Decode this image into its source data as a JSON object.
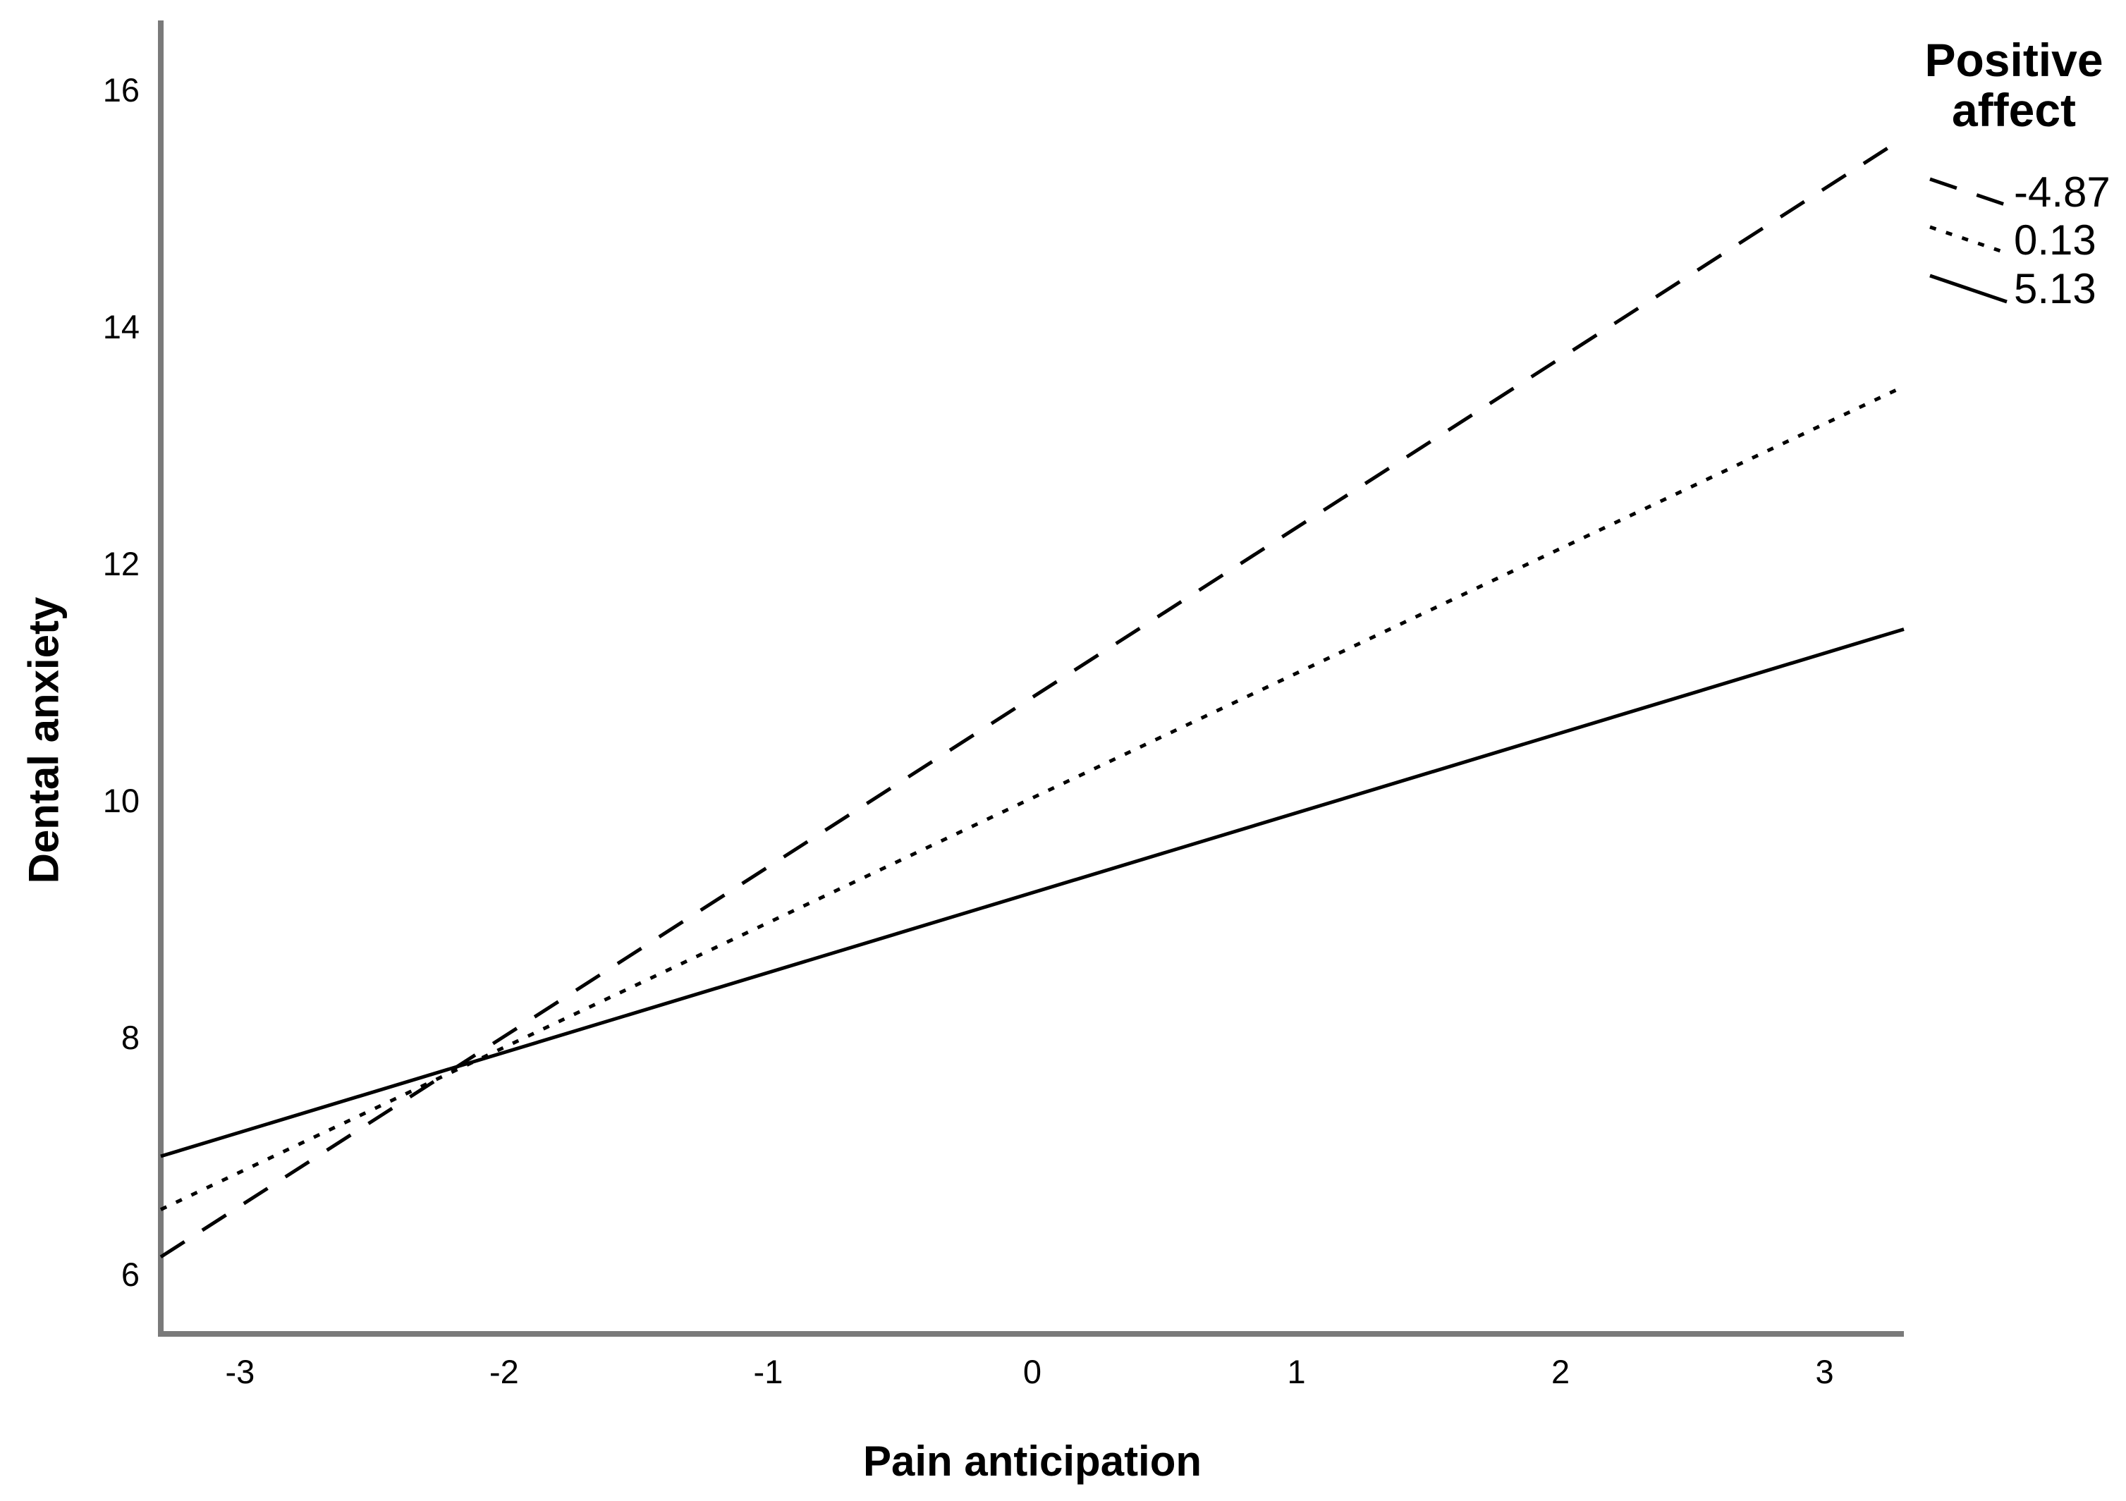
{
  "figure": {
    "background": "#ffffff",
    "axis_color": "#7a7a7a",
    "line_color": "#000000"
  },
  "chart_data": {
    "type": "line",
    "title": "",
    "xlabel": "Pain anticipation",
    "ylabel": "Dental anxiety",
    "xlim": [
      -3.3,
      3.3
    ],
    "ylim": [
      5.5,
      16.59
    ],
    "x_ticks": [
      "-3",
      "-2",
      "-1",
      "0",
      "1",
      "2",
      "3"
    ],
    "x_tick_values": [
      -3,
      -2,
      -1,
      0,
      1,
      2,
      3
    ],
    "y_ticks": [
      "6",
      "8",
      "10",
      "12",
      "14",
      "16"
    ],
    "y_tick_values": [
      6,
      8,
      10,
      12,
      14,
      16
    ],
    "grid": false,
    "legend": {
      "title": "Positive affect",
      "position": "top-right"
    },
    "series": [
      {
        "name": "-4.87",
        "style": "dashed",
        "x": [
          -3.3,
          3.3
        ],
        "y": [
          6.15,
          15.6
        ]
      },
      {
        "name": "0.13",
        "style": "dotted",
        "x": [
          -3.3,
          3.3
        ],
        "y": [
          6.55,
          13.5
        ]
      },
      {
        "name": "5.13",
        "style": "solid",
        "x": [
          -3.3,
          3.3
        ],
        "y": [
          7.0,
          11.45
        ]
      }
    ]
  }
}
